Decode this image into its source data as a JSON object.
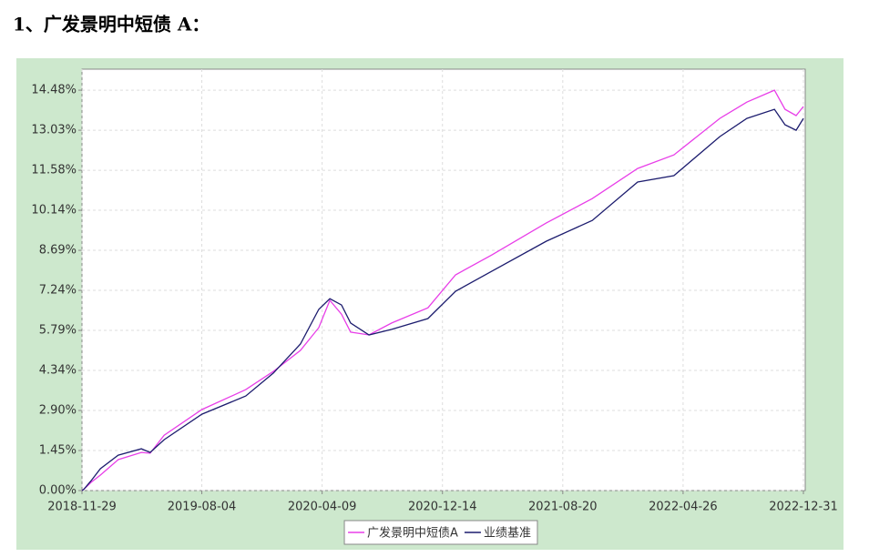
{
  "chart_data": {
    "type": "line",
    "title": "1、广发景明中短债 A：",
    "x": [
      "2018-11-29",
      "2018-12-03",
      "2018-12-18",
      "2019-01-06",
      "2019-02-12",
      "2019-04-01",
      "2019-04-19",
      "2019-05-18",
      "2019-08-04",
      "2019-11-03",
      "2019-12-30",
      "2020-02-24",
      "2020-04-02",
      "2020-04-25",
      "2020-05-19",
      "2020-06-07",
      "2020-07-15",
      "2020-08-31",
      "2020-11-14",
      "2021-01-10",
      "2021-03-26",
      "2021-07-17",
      "2021-10-20",
      "2022-01-22",
      "2022-04-07",
      "2022-07-11",
      "2022-09-05",
      "2022-11-01",
      "2022-11-23",
      "2022-12-16",
      "2022-12-31"
    ],
    "series": [
      {
        "name": "广发景明中短债A",
        "color": "#e83ee8",
        "values": [
          0,
          0.05,
          0.3,
          0.56,
          1.12,
          1.38,
          1.35,
          2.0,
          2.93,
          3.65,
          4.31,
          5.07,
          5.89,
          6.88,
          6.38,
          5.73,
          5.63,
          6.06,
          6.61,
          7.8,
          8.52,
          9.68,
          10.56,
          11.65,
          12.14,
          13.46,
          14.05,
          14.48,
          13.79,
          13.56,
          13.89
        ]
      },
      {
        "name": "业绩基准",
        "color": "#1c1c6e",
        "values": [
          0,
          0.05,
          0.36,
          0.79,
          1.28,
          1.51,
          1.38,
          1.84,
          2.76,
          3.42,
          4.25,
          5.3,
          6.55,
          6.94,
          6.71,
          6.06,
          5.63,
          5.83,
          6.22,
          7.21,
          7.93,
          9.02,
          9.77,
          11.16,
          11.39,
          12.8,
          13.46,
          13.79,
          13.23,
          13.03,
          13.46
        ]
      }
    ],
    "xlim": [
      "2018-11-29",
      "2022-12-31"
    ],
    "xticks": [
      "2018-11-29",
      "2019-08-04",
      "2020-04-09",
      "2020-12-14",
      "2021-08-20",
      "2022-04-26",
      "2022-12-31"
    ],
    "ylim": [
      0,
      15.24
    ],
    "yticks": [
      {
        "value": 0,
        "label": "0.00%"
      },
      {
        "value": 1.448,
        "label": "1.45%"
      },
      {
        "value": 2.896,
        "label": "2.90%"
      },
      {
        "value": 4.344,
        "label": "4.34%"
      },
      {
        "value": 5.792,
        "label": "5.79%"
      },
      {
        "value": 7.24,
        "label": "7.24%"
      },
      {
        "value": 8.688,
        "label": "8.69%"
      },
      {
        "value": 10.136,
        "label": "10.14%"
      },
      {
        "value": 11.584,
        "label": "11.58%"
      },
      {
        "value": 13.032,
        "label": "13.03%"
      },
      {
        "value": 14.48,
        "label": "14.48%"
      }
    ],
    "grid": true
  }
}
